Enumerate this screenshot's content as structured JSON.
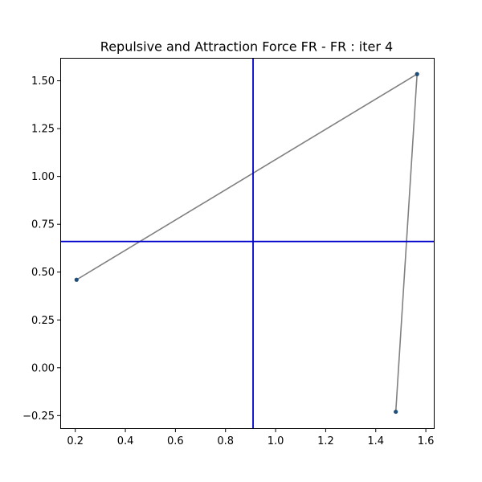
{
  "chart_data": {
    "type": "scatter",
    "title": "Repulsive and Attraction Force FR - FR : iter 4",
    "xlabel": "",
    "ylabel": "",
    "xlim": [
      0.14,
      1.635
    ],
    "ylim": [
      -0.32,
      1.62
    ],
    "xticks": [
      0.2,
      0.4,
      0.6,
      0.8,
      1.0,
      1.2,
      1.4,
      1.6
    ],
    "xtick_labels": [
      "0.2",
      "0.4",
      "0.6",
      "0.8",
      "1.0",
      "1.2",
      "1.4",
      "1.6"
    ],
    "yticks": [
      -0.25,
      0.0,
      0.25,
      0.5,
      0.75,
      1.0,
      1.25,
      1.5
    ],
    "ytick_labels": [
      "−0.25",
      "0.00",
      "0.25",
      "0.50",
      "0.75",
      "1.00",
      "1.25",
      "1.50"
    ],
    "grid": false,
    "points": [
      {
        "x": 0.205,
        "y": 0.46
      },
      {
        "x": 1.565,
        "y": 1.535
      },
      {
        "x": 1.48,
        "y": -0.23
      }
    ],
    "edges": [
      [
        0,
        1
      ],
      [
        1,
        2
      ]
    ],
    "vline_x": 0.91,
    "hline_y": 0.66,
    "colors": {
      "point": "#1f4e79",
      "edge": "#808080",
      "crosshair": "#0000cc",
      "axes": "#000000"
    }
  }
}
